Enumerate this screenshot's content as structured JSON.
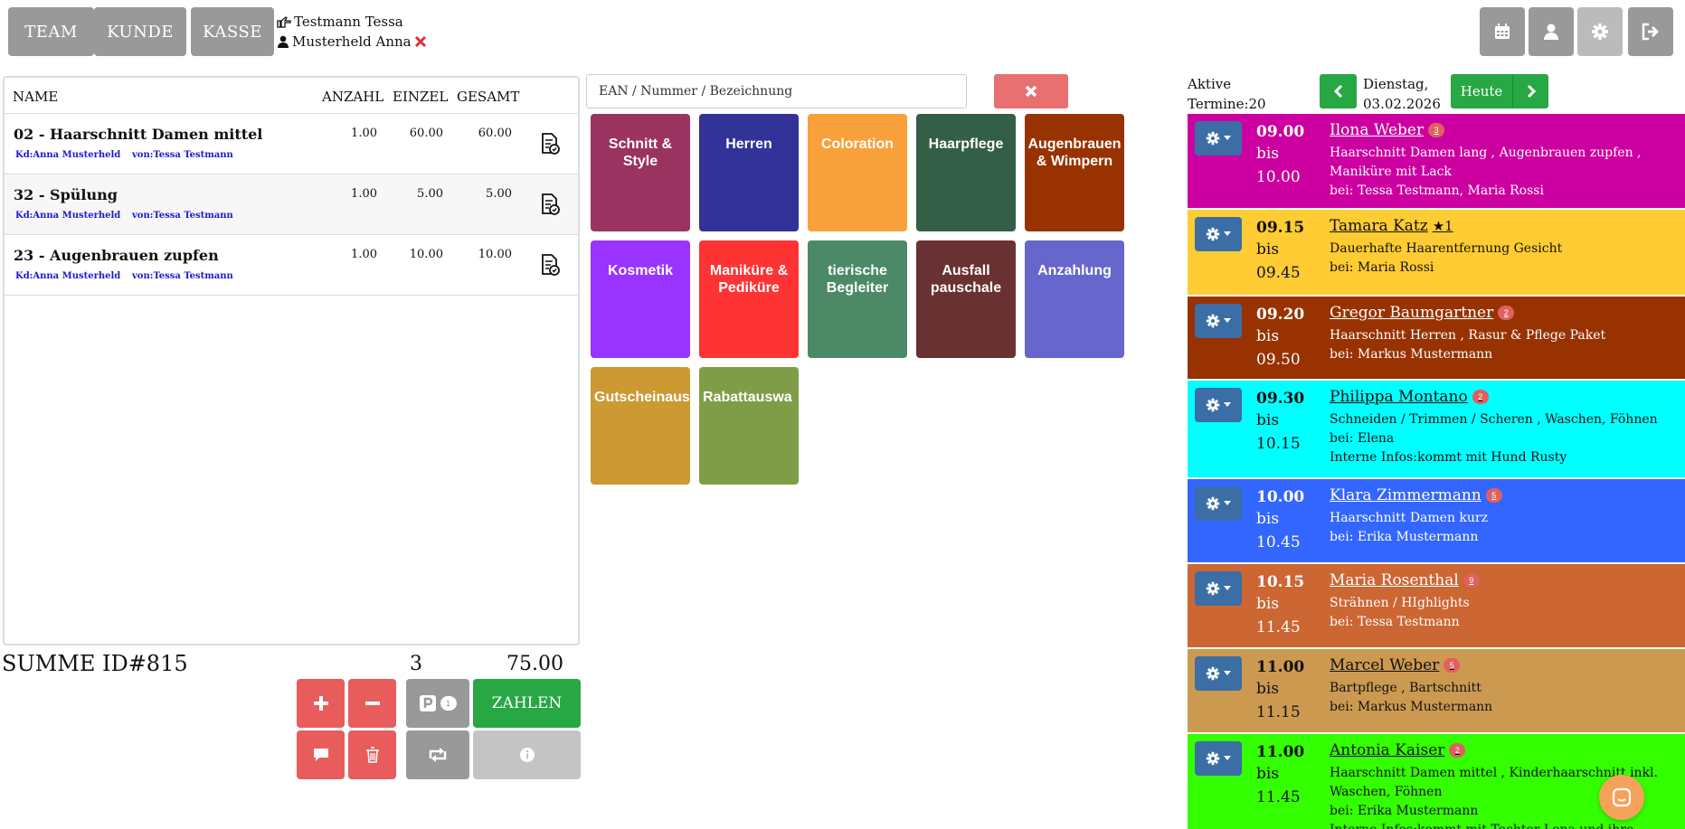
{
  "nav": {
    "team": "TEAM",
    "kunde": "KUNDE",
    "kasse": "KASSE"
  },
  "users": {
    "employee": "Testmann Tessa",
    "customer": "Musterheld Anna"
  },
  "cart": {
    "headers": {
      "name": "NAME",
      "anzahl": "ANZAHL",
      "einzel": "EINZEL",
      "gesamt": "GESAMT"
    },
    "rows": [
      {
        "name": "02 - Haarschnitt Damen mittel",
        "anzahl": "1.00",
        "einzel": "60.00",
        "gesamt": "60.00",
        "kd": "Kd:Anna Musterheld",
        "von": "von:Tessa Testmann"
      },
      {
        "name": "32 - Spülung",
        "anzahl": "1.00",
        "einzel": "5.00",
        "gesamt": "5.00",
        "kd": "Kd:Anna Musterheld",
        "von": "von:Tessa Testmann"
      },
      {
        "name": "23 - Augenbrauen zupfen",
        "anzahl": "1.00",
        "einzel": "10.00",
        "gesamt": "10.00",
        "kd": "Kd:Anna Musterheld",
        "von": "von:Tessa Testmann"
      }
    ]
  },
  "summary": {
    "label": "SUMME ID#815",
    "count": "3",
    "total": "75.00"
  },
  "actions": {
    "pay": "ZAHLEN",
    "park_badge": "1"
  },
  "search": {
    "placeholder": "EAN / Nummer / Bezeichnung"
  },
  "categories": [
    {
      "label": "Schnitt & Style",
      "color": "#9b3361"
    },
    {
      "label": "Herren",
      "color": "#323298"
    },
    {
      "label": "Coloration",
      "color": "#f8a03a"
    },
    {
      "label": "Haarpflege",
      "color": "#335e47"
    },
    {
      "label": "Augenbrauen & Wimpern",
      "color": "#983200"
    },
    {
      "label": "Kosmetik",
      "color": "#9933ff"
    },
    {
      "label": "Maniküre & Pediküre",
      "color": "#fe3333"
    },
    {
      "label": "tierische Begleiter",
      "color": "#4c8a67"
    },
    {
      "label": "Ausfall pauschale",
      "color": "#693131"
    },
    {
      "label": "Anzahlung",
      "color": "#6666cc"
    },
    {
      "label": "Gutscheinaus",
      "color": "#cc9933"
    },
    {
      "label": "Rabattauswa",
      "color": "#7f9d47"
    }
  ],
  "calendar": {
    "active_label": "Aktive",
    "active_count": "Termine:20",
    "day": "Dienstag,",
    "date": "03.02.2026",
    "today": "Heute"
  },
  "appointments": [
    {
      "from": "09.00",
      "bis": "bis",
      "to": "10.00",
      "name": "Ilona Weber",
      "badge": "3",
      "lines": [
        "Haarschnitt Damen lang , Augenbrauen zupfen ,",
        "Maniküre mit Lack",
        "bei: Tessa Testmann, Maria Rossi"
      ],
      "color": "#cc00a0",
      "text": "#ffffff"
    },
    {
      "from": "09.15",
      "bis": "bis",
      "to": "09.45",
      "name": "Tamara Katz",
      "badge": "★1",
      "lines": [
        "Dauerhafte Haarentfernung Gesicht",
        "bei: Maria Rossi"
      ],
      "color": "#ffcc33",
      "text": "#111111"
    },
    {
      "from": "09.20",
      "bis": "bis",
      "to": "09.50",
      "name": "Gregor Baumgartner",
      "badge": "2",
      "lines": [
        "Haarschnitt Herren , Rasur & Pflege Paket",
        "bei: Markus Mustermann"
      ],
      "color": "#983200",
      "text": "#ffffff"
    },
    {
      "from": "09.30",
      "bis": "bis",
      "to": "10.15",
      "name": "Philippa Montano",
      "badge": "2",
      "lines": [
        "Schneiden / Trimmen / Scheren , Waschen, Föhnen",
        "bei: Elena",
        "Interne Infos:kommt mit Hund Rusty"
      ],
      "color": "#00ffff",
      "text": "#111111"
    },
    {
      "from": "10.00",
      "bis": "bis",
      "to": "10.45",
      "name": "Klara Zimmermann",
      "badge": "5",
      "lines": [
        "Haarschnitt Damen kurz",
        "bei: Erika Mustermann"
      ],
      "color": "#3366ff",
      "text": "#ffffff"
    },
    {
      "from": "10.15",
      "bis": "bis",
      "to": "11.45",
      "name": "Maria Rosenthal",
      "badge": "9",
      "lines": [
        "Strähnen / HIghlights",
        "bei: Tessa Testmann"
      ],
      "color": "#cc6633",
      "text": "#ffffff"
    },
    {
      "from": "11.00",
      "bis": "bis",
      "to": "11.15",
      "name": "Marcel Weber",
      "badge": "5",
      "lines": [
        "Bartpflege , Bartschnitt",
        "bei: Markus Mustermann"
      ],
      "color": "#cc9950",
      "text": "#111111"
    },
    {
      "from": "11.00",
      "bis": "bis",
      "to": "11.45",
      "name": "Antonia Kaiser",
      "badge": "2",
      "lines": [
        "Haarschnitt Damen mittel , Kinderhaarschnitt inkl.",
        "Waschen, Föhnen",
        "bei: Erika Mustermann",
        "Interne Infos:kommt mit Tochter Lena und ihre"
      ],
      "color": "#33ff00",
      "text": "#111111"
    }
  ]
}
